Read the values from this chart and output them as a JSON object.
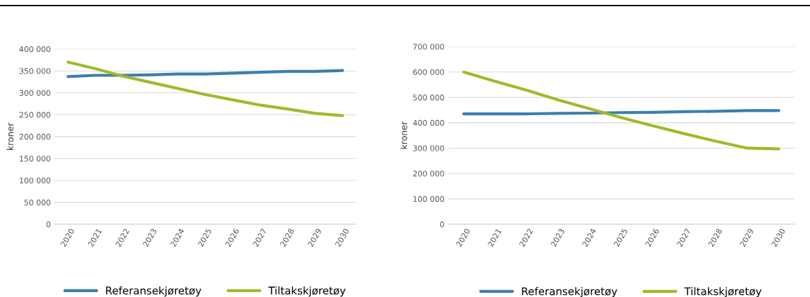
{
  "chart_data": [
    {
      "type": "line",
      "ylabel": "kroner",
      "categories": [
        "2020",
        "2021",
        "2022",
        "2023",
        "2024",
        "2025",
        "2026",
        "2027",
        "2028",
        "2029",
        "2030"
      ],
      "series": [
        {
          "name": "Referansekjøretøy",
          "color": "#3b7fad",
          "values": [
            337000,
            340000,
            340000,
            341000,
            343000,
            343000,
            345000,
            347000,
            349000,
            349000,
            351000
          ]
        },
        {
          "name": "Tiltakskjøretøy",
          "color": "#9fba2a",
          "values": [
            370000,
            355000,
            338000,
            324000,
            310000,
            296000,
            284000,
            272000,
            263000,
            253000,
            248000
          ]
        }
      ],
      "ylim": [
        0,
        400000
      ],
      "yticks": [
        {
          "value": 0,
          "label": "0"
        },
        {
          "value": 50000,
          "label": "50 000"
        },
        {
          "value": 100000,
          "label": "100 000"
        },
        {
          "value": 150000,
          "label": "150 000"
        },
        {
          "value": 200000,
          "label": "200 000"
        },
        {
          "value": 250000,
          "label": "250 000"
        },
        {
          "value": 300000,
          "label": "300 000"
        },
        {
          "value": 350000,
          "label": "350 000"
        },
        {
          "value": 400000,
          "label": "400 000"
        }
      ],
      "grid": "y",
      "legend": "bottom",
      "marker": "none",
      "line_style": "solid"
    },
    {
      "type": "line",
      "ylabel": "kroner",
      "categories": [
        "2020",
        "2021",
        "2022",
        "2023",
        "2024",
        "2025",
        "2026",
        "2027",
        "2028",
        "2029",
        "2030"
      ],
      "series": [
        {
          "name": "Referansekjøretøy",
          "color": "#3b7fad",
          "values": [
            435000,
            435000,
            435000,
            437000,
            438000,
            440000,
            441000,
            444000,
            445000,
            448000,
            448000
          ]
        },
        {
          "name": "Tiltakskjøretøy",
          "color": "#9fba2a",
          "values": [
            600000,
            563000,
            528000,
            490000,
            455000,
            420000,
            388000,
            357000,
            327000,
            300000,
            297000
          ]
        }
      ],
      "ylim": [
        0,
        700000
      ],
      "yticks": [
        {
          "value": 0,
          "label": "0"
        },
        {
          "value": 100000,
          "label": "100 000"
        },
        {
          "value": 200000,
          "label": "200 000"
        },
        {
          "value": 300000,
          "label": "300 000"
        },
        {
          "value": 400000,
          "label": "400 000"
        },
        {
          "value": 500000,
          "label": "500 000"
        },
        {
          "value": 600000,
          "label": "600 000"
        },
        {
          "value": 700000,
          "label": "700 000"
        }
      ],
      "grid": "y",
      "legend": "bottom",
      "marker": "none",
      "line_style": "solid"
    }
  ]
}
